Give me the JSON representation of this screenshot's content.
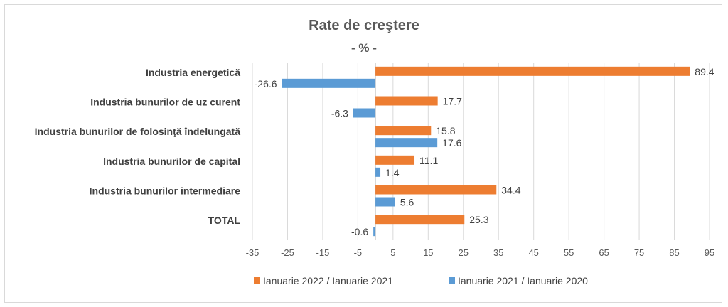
{
  "chart_data": {
    "type": "bar",
    "orientation": "horizontal",
    "title": "Rate de creştere",
    "subtitle": "- % -",
    "categories": [
      "Industria energetică",
      "Industria bunurilor de uz curent",
      "Industria bunurilor de folosinţă  îndelungată",
      "Industria bunurilor de capital",
      "Industria bunurilor intermediare",
      "TOTAL"
    ],
    "series": [
      {
        "name": "Ianuarie  2022 / Ianuarie  2021",
        "color": "#ED7D31",
        "values": [
          89.4,
          17.7,
          15.8,
          11.1,
          34.4,
          25.3
        ],
        "labels": [
          "89.4",
          "17.7",
          "15.8",
          "11.1",
          "34.4",
          "25.3"
        ]
      },
      {
        "name": "Ianuarie 2021 / Ianuarie  2020",
        "color": "#5B9BD5",
        "values": [
          -26.6,
          -6.3,
          17.6,
          1.4,
          5.6,
          -0.6
        ],
        "labels": [
          "-26.6",
          "-6.3",
          "17.6",
          "1.4",
          "5.6",
          "-0.6"
        ]
      }
    ],
    "xlim": [
      -35,
      95
    ],
    "xticks": [
      "-35",
      "-25",
      "-15",
      "-5",
      "5",
      "15",
      "25",
      "35",
      "45",
      "55",
      "65",
      "75",
      "85",
      "95"
    ],
    "gridlines": true,
    "legend_position": "bottom"
  }
}
